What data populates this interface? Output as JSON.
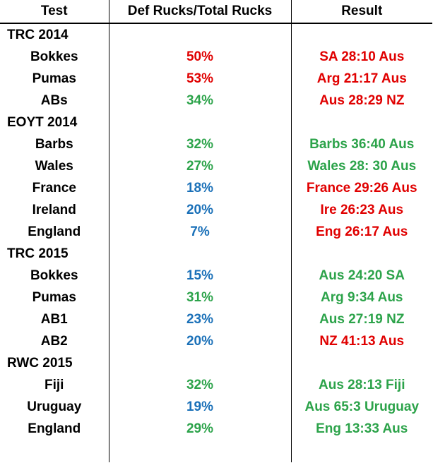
{
  "headers": [
    "Test",
    "Def Rucks/Total Rucks",
    "Result"
  ],
  "colors": {
    "red": "#e00000",
    "green": "#2ca34a",
    "blue": "#1a70b8"
  },
  "rows": [
    {
      "type": "section",
      "name": "TRC 2014"
    },
    {
      "type": "team",
      "name": "Bokkes",
      "pct": "50%",
      "pct_color": "red",
      "result": "SA 28:10 Aus",
      "result_color": "red"
    },
    {
      "type": "team",
      "name": "Pumas",
      "pct": "53%",
      "pct_color": "red",
      "result": "Arg 21:17 Aus",
      "result_color": "red"
    },
    {
      "type": "team",
      "name": "ABs",
      "pct": "34%",
      "pct_color": "green",
      "result": "Aus 28:29 NZ",
      "result_color": "red"
    },
    {
      "type": "section",
      "name": "EOYT 2014"
    },
    {
      "type": "team",
      "name": "Barbs",
      "pct": "32%",
      "pct_color": "green",
      "result": "Barbs 36:40 Aus",
      "result_color": "green"
    },
    {
      "type": "team",
      "name": "Wales",
      "pct": "27%",
      "pct_color": "green",
      "result": "Wales 28: 30 Aus",
      "result_color": "green"
    },
    {
      "type": "team",
      "name": "France",
      "pct": "18%",
      "pct_color": "blue",
      "result": "France 29:26 Aus",
      "result_color": "red"
    },
    {
      "type": "team",
      "name": "Ireland",
      "pct": "20%",
      "pct_color": "blue",
      "result": "Ire 26:23 Aus",
      "result_color": "red"
    },
    {
      "type": "team",
      "name": "England",
      "pct": "7%",
      "pct_color": "blue",
      "result": "Eng 26:17 Aus",
      "result_color": "red"
    },
    {
      "type": "section",
      "name": "TRC 2015"
    },
    {
      "type": "team",
      "name": "Bokkes",
      "pct": "15%",
      "pct_color": "blue",
      "result": "Aus 24:20 SA",
      "result_color": "green"
    },
    {
      "type": "team",
      "name": "Pumas",
      "pct": "31%",
      "pct_color": "green",
      "result": "Arg 9:34 Aus",
      "result_color": "green"
    },
    {
      "type": "team",
      "name": "AB1",
      "pct": "23%",
      "pct_color": "blue",
      "result": "Aus 27:19 NZ",
      "result_color": "green"
    },
    {
      "type": "team",
      "name": "AB2",
      "pct": "20%",
      "pct_color": "blue",
      "result": "NZ 41:13 Aus",
      "result_color": "red"
    },
    {
      "type": "section",
      "name": "RWC 2015"
    },
    {
      "type": "team",
      "name": "Fiji",
      "pct": "32%",
      "pct_color": "green",
      "result": "Aus 28:13 Fiji",
      "result_color": "green"
    },
    {
      "type": "team",
      "name": "Uruguay",
      "pct": "19%",
      "pct_color": "blue",
      "result": "Aus 65:3 Uruguay",
      "result_color": "green"
    },
    {
      "type": "team",
      "name": "England",
      "pct": "29%",
      "pct_color": "green",
      "result": "Eng 13:33 Aus",
      "result_color": "green"
    }
  ]
}
